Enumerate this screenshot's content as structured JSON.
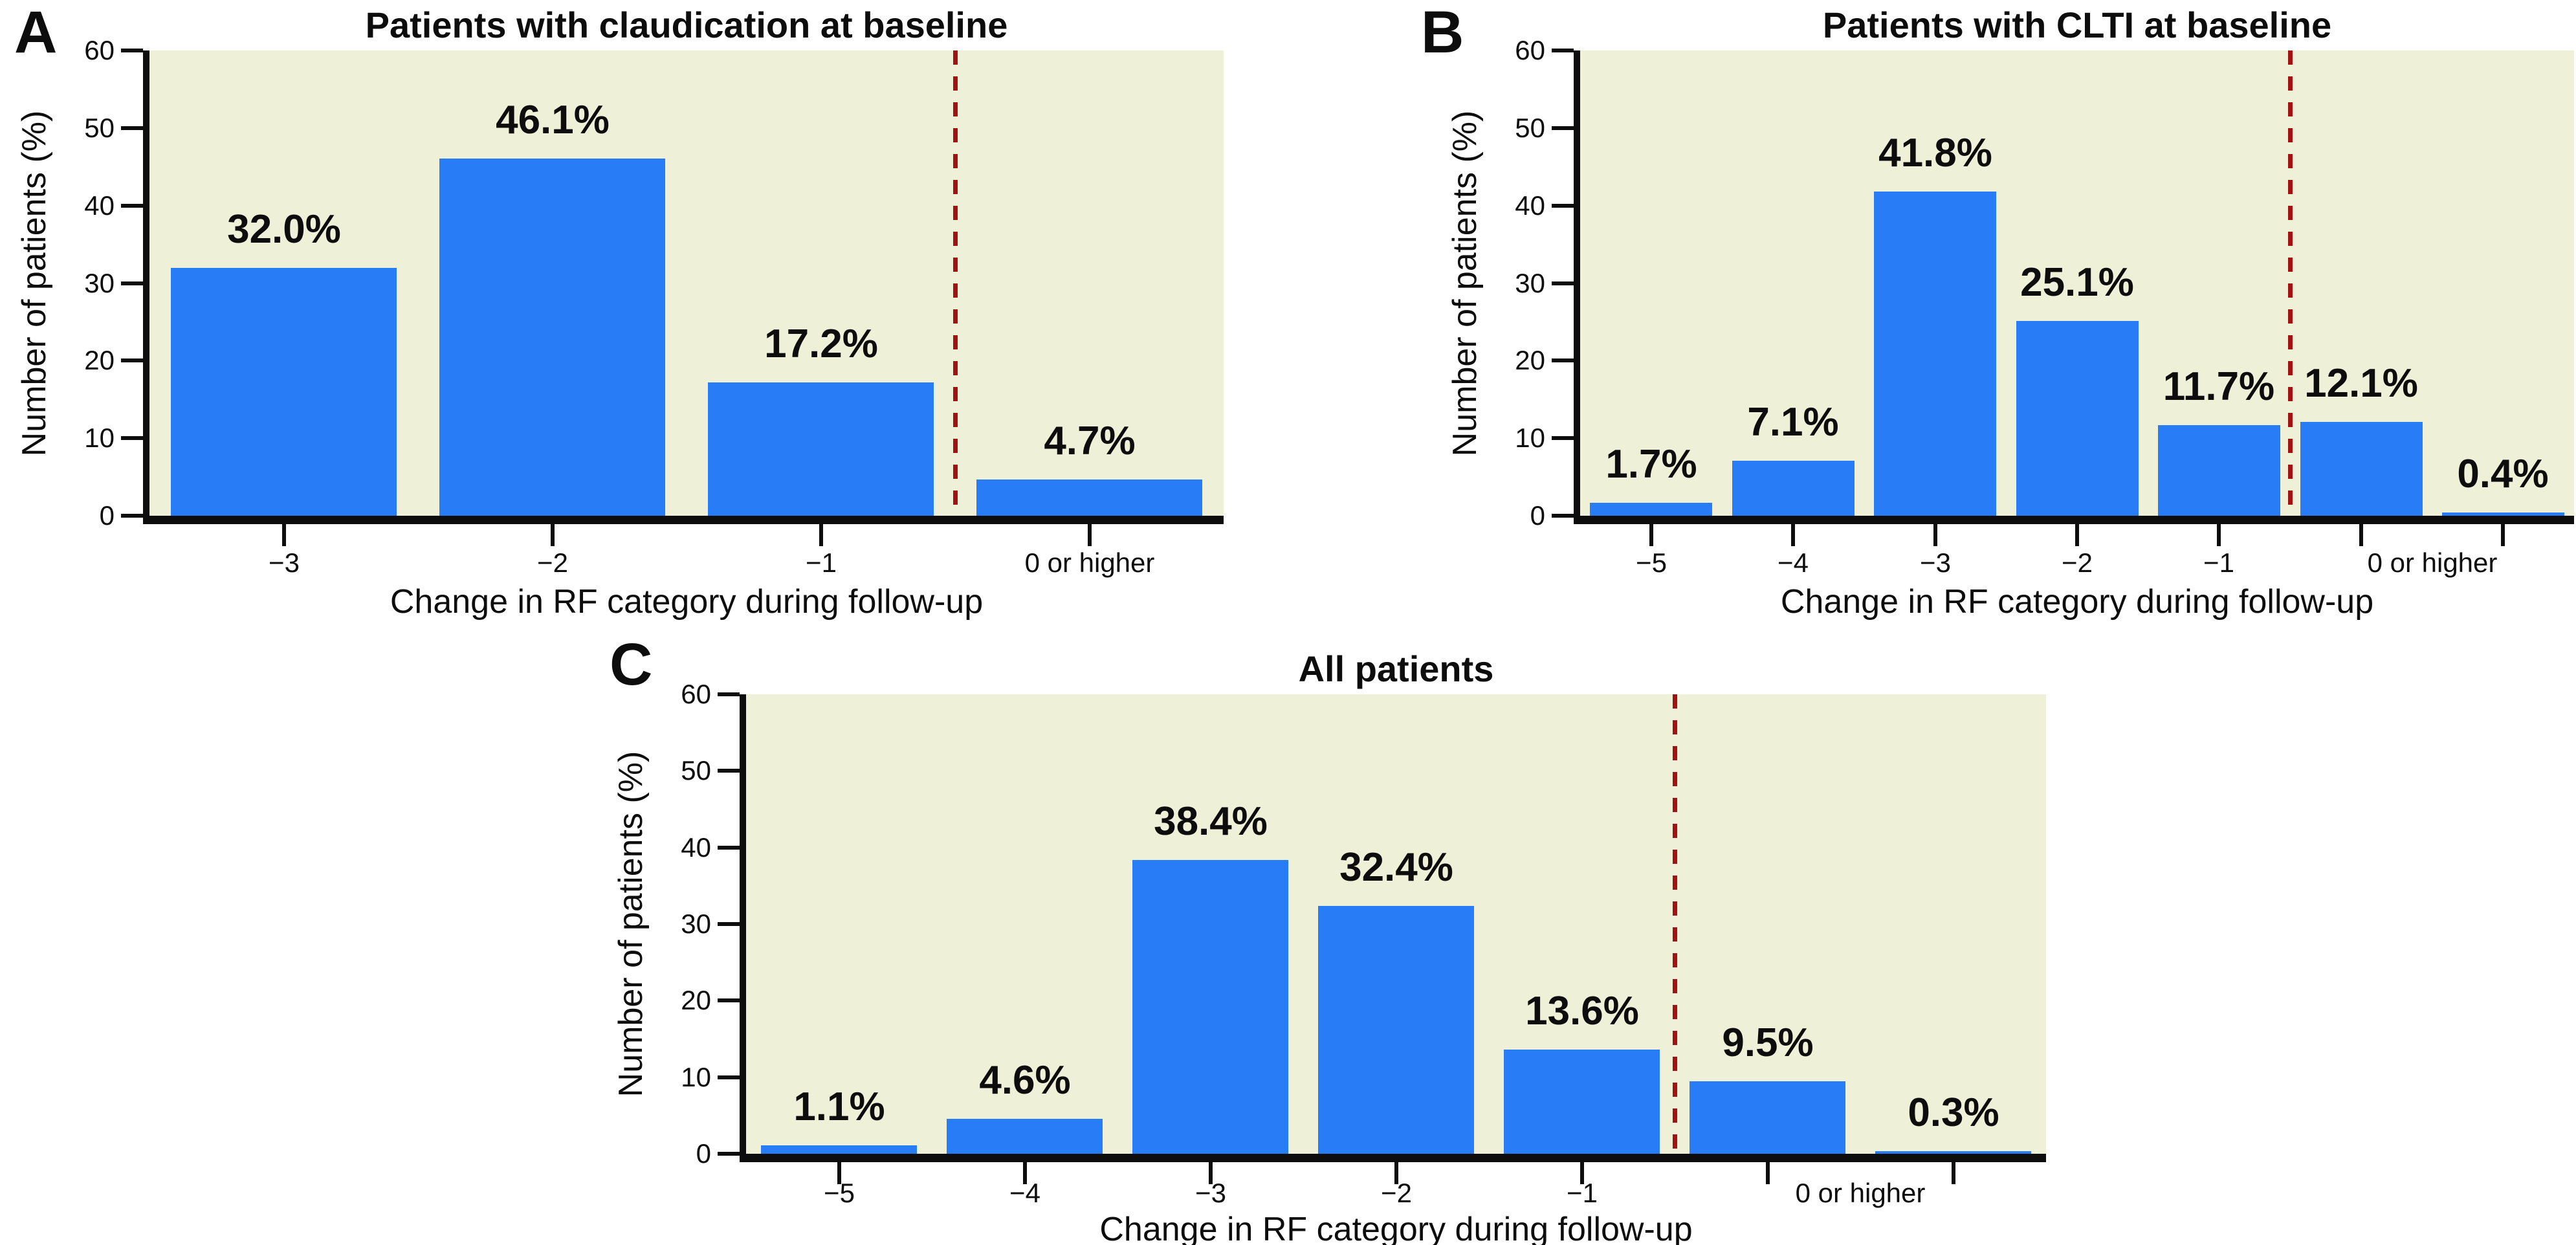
{
  "colors": {
    "bar": "#287CF5",
    "plot_background": "#EEF0D8",
    "dashed_reference_line": "#A31212",
    "axis": "#0d0d0d",
    "page_background": "#ffffff"
  },
  "chart_data": [
    {
      "panel_label": "A",
      "type": "bar",
      "title": "Patients with claudication at baseline",
      "xlabel": "Change in RF category during follow-up",
      "ylabel": "Number of patients (%)",
      "ylim": [
        0,
        60
      ],
      "yticks": [
        0,
        10,
        20,
        30,
        40,
        50,
        60
      ],
      "categories": [
        "−3",
        "−2",
        "−1",
        "0 or higher"
      ],
      "values": [
        32.0,
        46.1,
        17.2,
        4.7
      ],
      "value_labels": [
        "32.0%",
        "46.1%",
        "17.2%",
        "4.7%"
      ],
      "xtick_mark_positions": [
        0,
        1,
        2,
        3
      ],
      "xtick_labels": [
        {
          "pos": 0,
          "text": "−3"
        },
        {
          "pos": 1,
          "text": "−2"
        },
        {
          "pos": 2,
          "text": "−1"
        },
        {
          "pos": 3,
          "text": "0 or higher"
        }
      ],
      "dashed_line_boundary_index": 3,
      "grid": false,
      "legend": false
    },
    {
      "panel_label": "B",
      "type": "bar",
      "title": "Patients with CLTI at baseline",
      "xlabel": "Change in RF category during follow-up",
      "ylabel": "Number of patients (%)",
      "ylim": [
        0,
        60
      ],
      "yticks": [
        0,
        10,
        20,
        30,
        40,
        50,
        60
      ],
      "categories": [
        "−5",
        "−4",
        "−3",
        "−2",
        "−1",
        "0 or higher (left bar)",
        "0 or higher (right bar)"
      ],
      "values": [
        1.7,
        7.1,
        41.8,
        25.1,
        11.7,
        12.1,
        0.4
      ],
      "value_labels": [
        "1.7%",
        "7.1%",
        "41.8%",
        "25.1%",
        "11.7%",
        "12.1%",
        "0.4%"
      ],
      "xtick_mark_positions": [
        0,
        1,
        2,
        3,
        4,
        5,
        6
      ],
      "xtick_labels": [
        {
          "pos": 0,
          "text": "−5"
        },
        {
          "pos": 1,
          "text": "−4"
        },
        {
          "pos": 2,
          "text": "−3"
        },
        {
          "pos": 3,
          "text": "−2"
        },
        {
          "pos": 4,
          "text": "−1"
        },
        {
          "pos": 5.5,
          "text": "0 or higher"
        }
      ],
      "dashed_line_boundary_index": 5,
      "grid": false,
      "legend": false
    },
    {
      "panel_label": "C",
      "type": "bar",
      "title": "All patients",
      "xlabel": "Change in RF category during follow-up",
      "ylabel": "Number of patients (%)",
      "ylim": [
        0,
        60
      ],
      "yticks": [
        0,
        10,
        20,
        30,
        40,
        50,
        60
      ],
      "categories": [
        "−5",
        "−4",
        "−3",
        "−2",
        "−1",
        "0 or higher (left bar)",
        "0 or higher (right bar)"
      ],
      "values": [
        1.1,
        4.6,
        38.4,
        32.4,
        13.6,
        9.5,
        0.3
      ],
      "value_labels": [
        "1.1%",
        "4.6%",
        "38.4%",
        "32.4%",
        "13.6%",
        "9.5%",
        "0.3%"
      ],
      "xtick_mark_positions": [
        0,
        1,
        2,
        3,
        4,
        5,
        6
      ],
      "xtick_labels": [
        {
          "pos": 0,
          "text": "−5"
        },
        {
          "pos": 1,
          "text": "−4"
        },
        {
          "pos": 2,
          "text": "−3"
        },
        {
          "pos": 3,
          "text": "−2"
        },
        {
          "pos": 4,
          "text": "−1"
        },
        {
          "pos": 5.5,
          "text": "0 or higher"
        }
      ],
      "dashed_line_boundary_index": 5,
      "grid": false,
      "legend": false
    }
  ]
}
